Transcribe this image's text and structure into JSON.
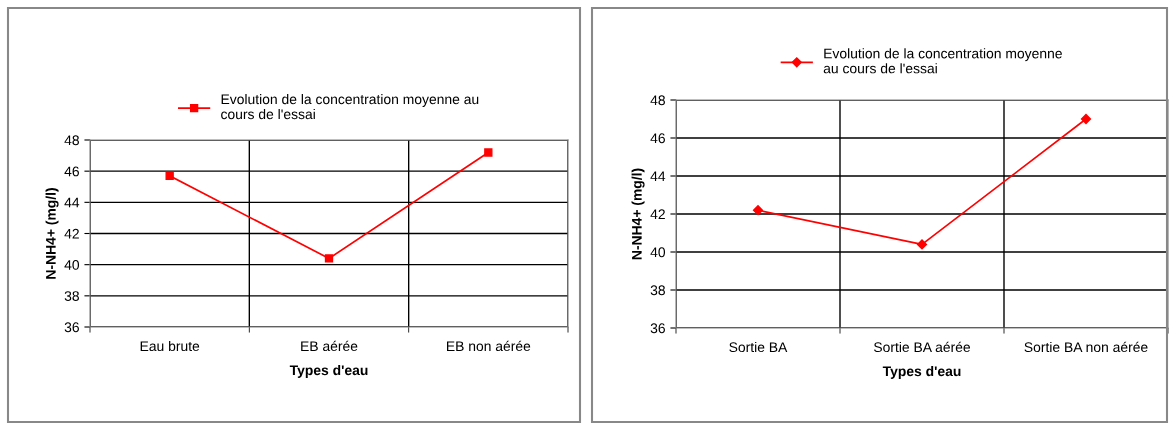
{
  "chart_data": [
    {
      "type": "line",
      "categories": [
        "Eau brute",
        "EB aérée",
        "EB non aérée"
      ],
      "xlabel": "Types d'eau",
      "ylabel": "N-NH4+ (mg/l)",
      "series": [
        {
          "name": "Evolution de la concentration moyenne au\ncours de l'essai",
          "color": "#ff0000",
          "values": [
            45.7,
            40.4,
            47.2
          ]
        }
      ],
      "ylim": [
        36,
        48
      ],
      "yticks": [
        36,
        38,
        40,
        42,
        44,
        46,
        48
      ],
      "grid": true,
      "legend": "top",
      "marker": "square",
      "line_style": "solid"
    },
    {
      "type": "line",
      "categories": [
        "Sortie BA",
        "Sortie BA aérée",
        "Sortie BA non aérée"
      ],
      "xlabel": "Types d'eau",
      "ylabel": "N-NH4+ (mg/l)",
      "series": [
        {
          "name": "Evolution de la concentration moyenne\nau cours de l'essai",
          "color": "#ff0000",
          "values": [
            42.2,
            40.4,
            47.0
          ]
        }
      ],
      "ylim": [
        36,
        48
      ],
      "yticks": [
        36,
        38,
        40,
        42,
        44,
        46,
        48
      ],
      "grid": true,
      "legend": "top",
      "marker": "diamond",
      "line_style": "solid"
    }
  ]
}
